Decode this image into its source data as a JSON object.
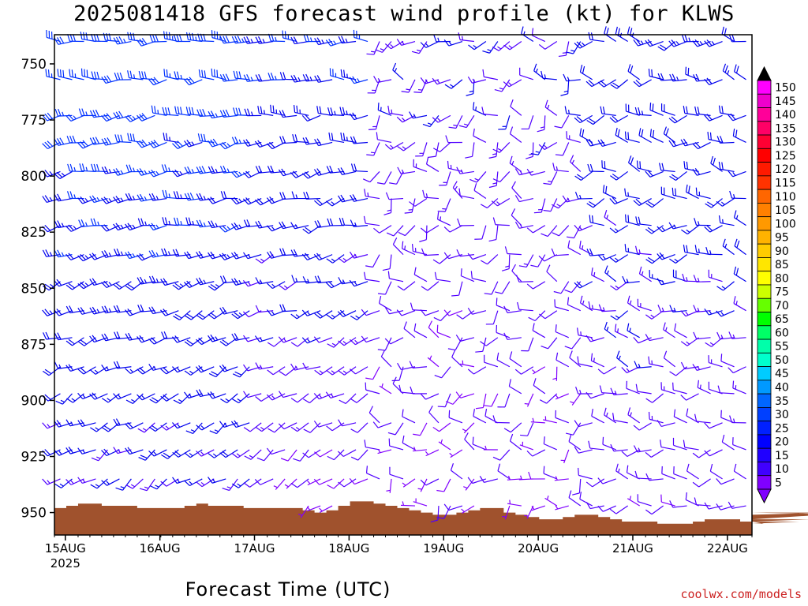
{
  "title": "2025081418 GFS forecast wind profile (kt) for KLWS",
  "credit": "coolwx.com/models",
  "chart_data": {
    "type": "wind-profile",
    "title": "2025081418 GFS forecast wind profile (kt) for KLWS",
    "xlabel": "Forecast Time (UTC)",
    "ylabel": "",
    "y_reversed": true,
    "ylim": [
      960,
      737
    ],
    "y_ticks": [
      750,
      775,
      800,
      825,
      850,
      875,
      900,
      925,
      950
    ],
    "x_days": [
      {
        "label": "15AUG",
        "sub": "2025",
        "day": 0
      },
      {
        "label": "16AUG",
        "day": 1
      },
      {
        "label": "17AUG",
        "day": 2
      },
      {
        "label": "18AUG",
        "day": 3
      },
      {
        "label": "19AUG",
        "day": 4
      },
      {
        "label": "20AUG",
        "day": 5
      },
      {
        "label": "21AUG",
        "day": 6
      },
      {
        "label": "22AUG",
        "day": 7
      }
    ],
    "x_start_day": -0.115,
    "x_end_day": 7.26,
    "levels": [
      740,
      757,
      773,
      785,
      798,
      810,
      822,
      835,
      847,
      860,
      872,
      885,
      897,
      910,
      922,
      935,
      947
    ],
    "times_per_day": 8,
    "surface_pressure": [
      948,
      947,
      946,
      946,
      947,
      947,
      947,
      948,
      948,
      948,
      948,
      947,
      946,
      947,
      947,
      947,
      948,
      948,
      948,
      948,
      948,
      949,
      950,
      949,
      947,
      945,
      945,
      946,
      947,
      948,
      949,
      950,
      951,
      951,
      950,
      949,
      948,
      948,
      950,
      951,
      952,
      953,
      953,
      952,
      951,
      951,
      952,
      953,
      954,
      954,
      954,
      955,
      955,
      955,
      954,
      953,
      953,
      953,
      954,
      954,
      955,
      955,
      955,
      954,
      953,
      951,
      950,
      950,
      951
    ],
    "colorbar": {
      "values": [
        150,
        145,
        140,
        135,
        130,
        125,
        120,
        115,
        110,
        105,
        100,
        95,
        90,
        85,
        80,
        75,
        70,
        65,
        60,
        55,
        50,
        45,
        40,
        35,
        30,
        25,
        20,
        15,
        10,
        5
      ],
      "colors": [
        "#ff00ff",
        "#ee00cc",
        "#ff0099",
        "#ff0066",
        "#ff0033",
        "#ff0000",
        "#ff1a00",
        "#ff3300",
        "#ff6600",
        "#ff8000",
        "#ff9900",
        "#ffb300",
        "#ffcc00",
        "#ffe600",
        "#ffff00",
        "#ccff00",
        "#66ff00",
        "#00ff00",
        "#00ff66",
        "#00ffaa",
        "#00ffcc",
        "#00ccff",
        "#0099ff",
        "#0066ff",
        "#0040ff",
        "#0020ff",
        "#0000ff",
        "#2000ff",
        "#4000ff",
        "#8000ff"
      ],
      "top_arrow_color": "#000000",
      "bottom_arrow_color": "#8000ff"
    },
    "ground_color": "#a0522d"
  }
}
